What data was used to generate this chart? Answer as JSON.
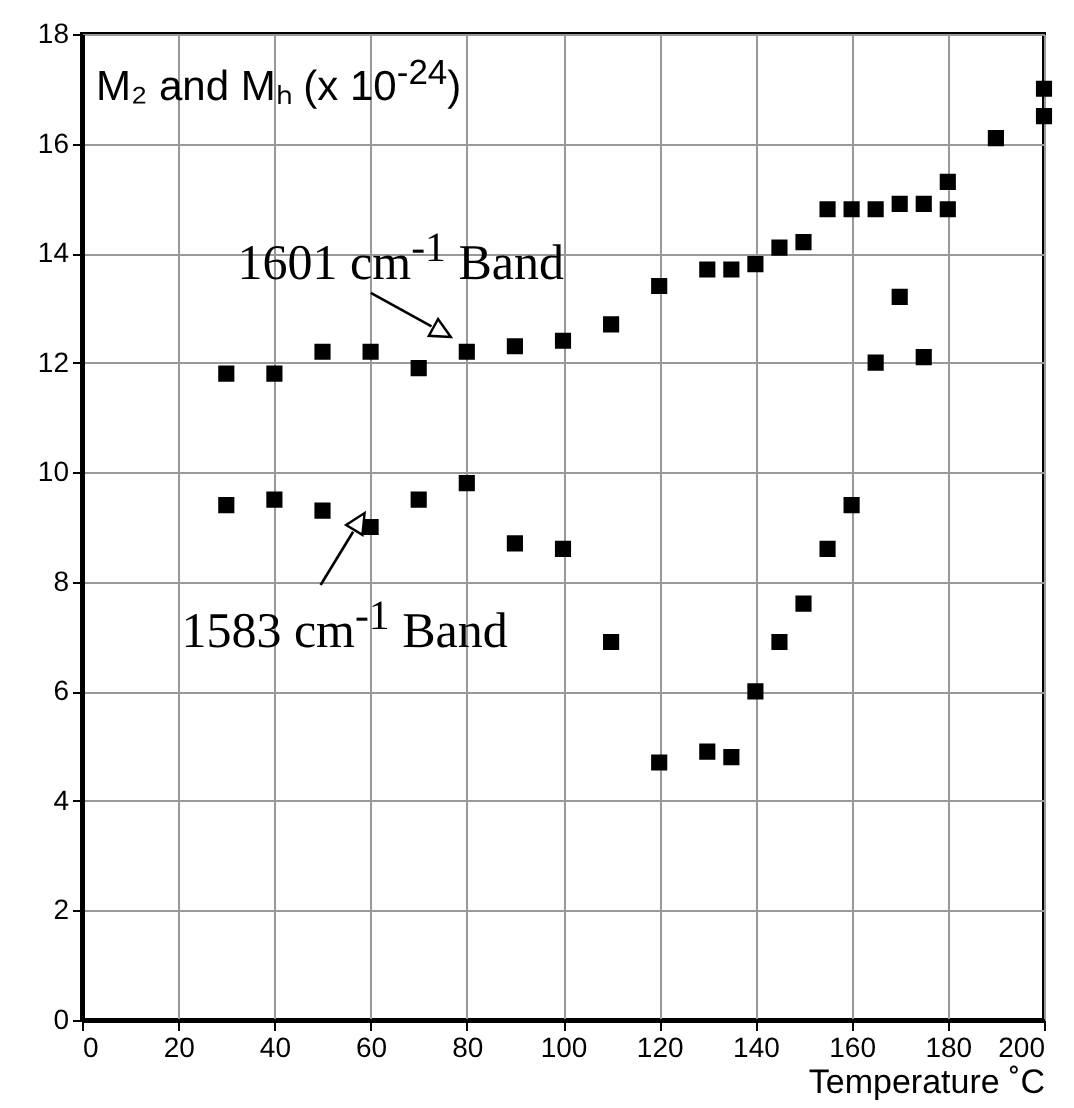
{
  "chart_data": {
    "type": "scatter",
    "title": "M₂ and Mₕ (x 10$^{-24}$)",
    "xlabel": "Temperature ˚C",
    "xlim": [
      0,
      200
    ],
    "xticks": [
      0,
      20,
      40,
      60,
      80,
      100,
      120,
      140,
      160,
      180,
      200
    ],
    "ylim": [
      0,
      18
    ],
    "yticks": [
      0,
      2,
      4,
      6,
      8,
      10,
      12,
      14,
      16,
      18
    ],
    "grid": true,
    "marker": "square",
    "annotations": [
      {
        "text": "1601 cm$^{-1}$ Band",
        "x": 80,
        "y": 12.25
      },
      {
        "text": "1583 cm$^{-1}$ Band",
        "x": 60,
        "y": 9.0
      }
    ],
    "series": [
      {
        "color": "#000000",
        "x": [
          30,
          40,
          50,
          60,
          70,
          80,
          90,
          100,
          110,
          120,
          130,
          135,
          140,
          145,
          150,
          155,
          160,
          165,
          170,
          175,
          180,
          180,
          190,
          200,
          200
        ],
        "values": [
          11.8,
          11.8,
          12.2,
          12.2,
          11.9,
          12.2,
          12.3,
          12.4,
          12.7,
          13.4,
          13.7,
          13.7,
          13.8,
          14.1,
          14.2,
          14.8,
          14.8,
          14.8,
          14.9,
          14.9,
          15.3,
          14.8,
          16.1,
          17.0,
          16.5
        ]
      },
      {
        "color": "#000000",
        "x": [
          30,
          40,
          50,
          60,
          70,
          80,
          90,
          100,
          110,
          120,
          130,
          135,
          140,
          145,
          150,
          155,
          160,
          165,
          170,
          175
        ],
        "values": [
          9.4,
          9.5,
          9.3,
          9.0,
          9.5,
          9.8,
          8.7,
          8.6,
          6.9,
          4.7,
          4.9,
          4.8,
          6.0,
          6.9,
          7.6,
          8.6,
          9.4,
          12.0,
          13.2,
          12.1
        ]
      }
    ]
  }
}
